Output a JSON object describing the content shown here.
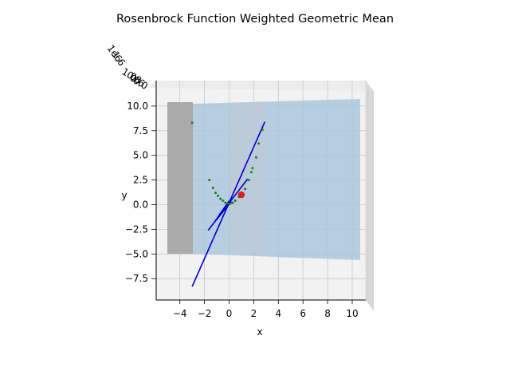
{
  "chart_data": {
    "type": "scatter",
    "title": "Rosenbrock Function Weighted Geometric Mean",
    "xlabel": "x",
    "ylabel": "y",
    "zlabel": "",
    "view": "3d-top-down",
    "grid": true,
    "legend": "none",
    "xlim": [
      -6,
      11.5
    ],
    "ylim": [
      -10,
      11
    ],
    "x_ticks": [
      "−4",
      "−2",
      "0",
      "2",
      "4",
      "6",
      "8",
      "10"
    ],
    "y_ticks": [
      "10.0",
      "7.5",
      "5.0",
      "2.5",
      "0.0",
      "−2.5",
      "−5.0",
      "−7.5"
    ],
    "z_ticks_overlapping": [
      "1e6",
      "1.6",
      "1.0",
      "0.8",
      "0.6",
      "0.0"
    ],
    "colors": {
      "surface": "#a7c4dc",
      "surface_shadow": "#aaaaaa",
      "path_points": "#1a7a1a",
      "lines": "#0000cc",
      "optimum": "#e31a1c",
      "pane": "#f2f2f2",
      "grid": "#c8c8c8"
    },
    "surface_region": {
      "x": [
        -5,
        10.5
      ],
      "y": [
        -5,
        10
      ]
    },
    "optimum_point": {
      "x": 1,
      "y": 1
    },
    "path_points": [
      [
        -3,
        8.3
      ],
      [
        -1.6,
        2.5
      ],
      [
        -1.3,
        1.7
      ],
      [
        -1.1,
        1.2
      ],
      [
        -0.9,
        0.9
      ],
      [
        -0.7,
        0.6
      ],
      [
        -0.5,
        0.4
      ],
      [
        -0.3,
        0.2
      ],
      [
        -0.1,
        0.1
      ],
      [
        0.1,
        0.1
      ],
      [
        0.3,
        0.2
      ],
      [
        0.5,
        0.4
      ],
      [
        0.8,
        0.8
      ],
      [
        1.0,
        1.1
      ],
      [
        1.3,
        1.6
      ],
      [
        1.6,
        2.5
      ],
      [
        1.8,
        3.3
      ],
      [
        1.9,
        3.7
      ],
      [
        2.2,
        4.8
      ],
      [
        2.4,
        6.2
      ],
      [
        2.7,
        7.6
      ]
    ],
    "segments": [
      [
        [
          -3,
          -8.3
        ],
        [
          2.9,
          8.4
        ]
      ],
      [
        [
          -1.7,
          -2.6
        ],
        [
          1.5,
          2.6
        ]
      ],
      [
        [
          -1.2,
          -1.8
        ],
        [
          0.0,
          0.4
        ]
      ],
      [
        [
          -1.0,
          -1.5
        ],
        [
          0.1,
          0.2
        ]
      ],
      [
        [
          -0.8,
          -1.0
        ],
        [
          0.2,
          0.3
        ]
      ]
    ]
  }
}
